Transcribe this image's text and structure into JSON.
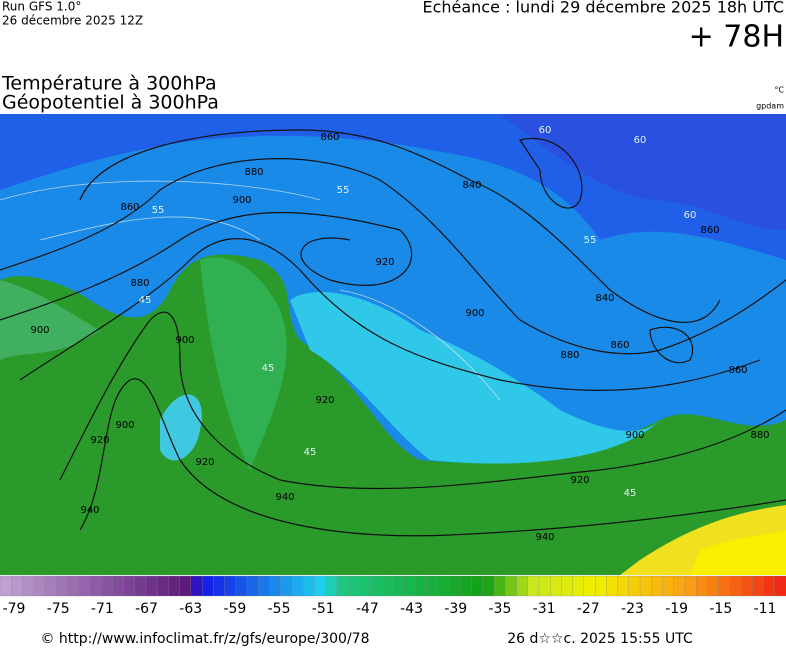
{
  "header": {
    "run": "Run GFS 1.0°",
    "run_date": "26 décembre 2025 12Z",
    "valid": "Echéance : lundi 29 décembre 2025 18h UTC",
    "lead": "+ 78H"
  },
  "titles": {
    "temperature": "Température à 300hPa",
    "geopotential": "Géopotentiel à 300hPa",
    "unit_temp": "°C",
    "unit_geo": "gpdam"
  },
  "map": {
    "geopotential_labels": [
      "860",
      "860",
      "880",
      "900",
      "840",
      "880",
      "900",
      "920",
      "900",
      "900",
      "840",
      "860",
      "880",
      "860",
      "920",
      "920",
      "900",
      "920",
      "940",
      "940",
      "920",
      "940",
      "900",
      "860",
      "880"
    ],
    "temperature_labels": [
      "60",
      "60",
      "60",
      "55",
      "55",
      "45",
      "45",
      "45",
      "45",
      "55"
    ]
  },
  "legend": {
    "ticks": [
      -79,
      -75,
      -71,
      -67,
      -63,
      -59,
      -55,
      -51,
      -47,
      -43,
      -39,
      -35,
      -31,
      -27,
      -23,
      -19,
      -15,
      -11
    ]
  },
  "footer": {
    "source": "© http://www.infoclimat.fr/z/gfs/europe/300/78",
    "generated": "26 d☆☆c. 2025 15:55 UTC"
  }
}
